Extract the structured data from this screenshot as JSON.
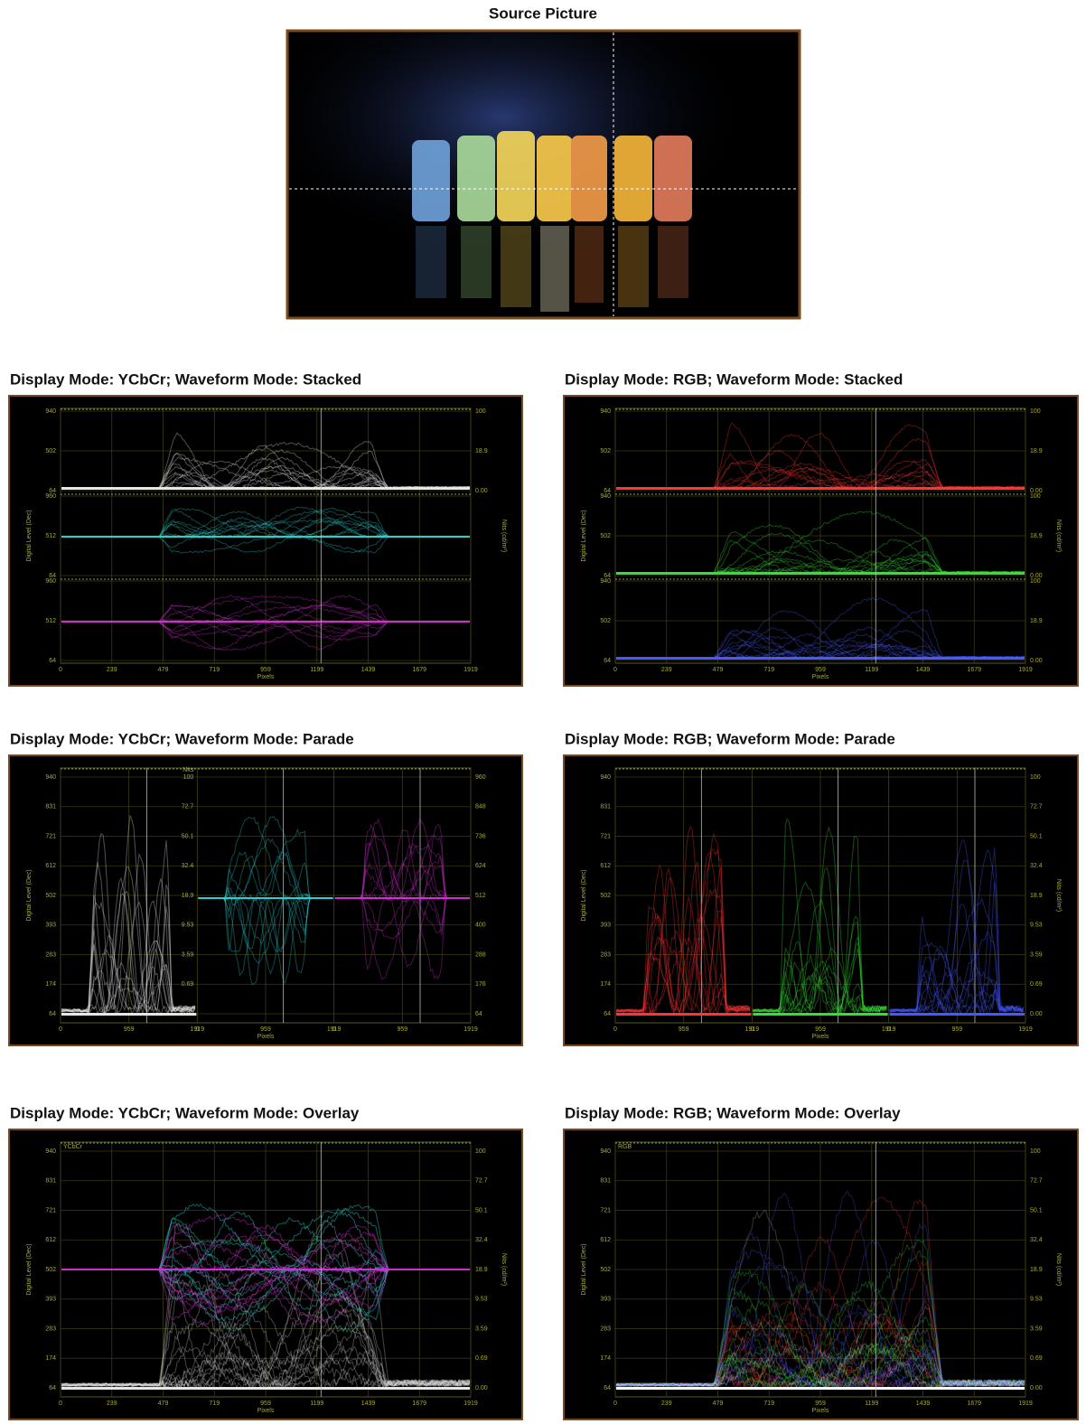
{
  "source_picture": {
    "title": "Source Picture"
  },
  "trace_colors": {
    "ycbcr": [
      "#e6e6e6",
      "#2ccfcf",
      "#d22fd2"
    ],
    "rgb": [
      "#ff3434",
      "#34e034",
      "#4658ff"
    ]
  },
  "panels": [
    {
      "heading": "Display Mode: YCbCr; Waveform Mode: Stacked",
      "colors": "ycbcr",
      "left_axis_label": "Digital Level (Dec)",
      "right_axis_label": "Nits (cd/m²)",
      "x_axis_label": "Pixels",
      "x_ticks": [
        "0",
        "239",
        "479",
        "719",
        "959",
        "1199",
        "1439",
        "1679",
        "1919"
      ],
      "bands": [
        {
          "left_ticks": [
            "940",
            "502",
            "64"
          ],
          "right_ticks": [
            "100",
            "18.9",
            "0.00"
          ]
        },
        {
          "left_ticks": [
            "960",
            "512",
            "64"
          ]
        },
        {
          "left_ticks": [
            "960",
            "512",
            "64"
          ]
        }
      ]
    },
    {
      "heading": "Display Mode: RGB; Waveform Mode: Stacked",
      "colors": "rgb",
      "left_axis_label": "Digital Level (Dec)",
      "right_axis_label": "Nits (cd/m²)",
      "x_axis_label": "Pixels",
      "x_ticks": [
        "0",
        "239",
        "479",
        "719",
        "959",
        "1199",
        "1439",
        "1679",
        "1919"
      ],
      "bands": [
        {
          "left_ticks": [
            "940",
            "502",
            "64"
          ],
          "right_ticks": [
            "100",
            "18.9",
            "0.00"
          ]
        },
        {
          "left_ticks": [
            "940",
            "502",
            "64"
          ],
          "right_ticks": [
            "100",
            "18.9",
            "0.00"
          ]
        },
        {
          "left_ticks": [
            "940",
            "502",
            "64"
          ],
          "right_ticks": [
            "100",
            "18.9",
            "0.00"
          ]
        }
      ]
    },
    {
      "heading": "Display Mode: YCbCr; Waveform Mode: Parade",
      "colors": "ycbcr",
      "left_axis_label": "Digital Level (Dec)",
      "x_axis_label": "Pixels",
      "left_ticks": [
        "940",
        "831",
        "721",
        "612",
        "502",
        "393",
        "283",
        "174",
        "64"
      ],
      "middle_axis_label": "Nits",
      "middle_ticks": [
        "100",
        "72.7",
        "50.1",
        "32.4",
        "18.9",
        "9.53",
        "3.59",
        "0.69",
        "0.00"
      ],
      "right_ticks": [
        "960",
        "848",
        "736",
        "624",
        "512",
        "400",
        "288",
        "176",
        "64"
      ],
      "sections": [
        {
          "x_ticks": [
            "0",
            "959",
            "1919"
          ]
        },
        {
          "x_ticks": [
            "0",
            "959",
            "1919"
          ]
        },
        {
          "x_ticks": [
            "0",
            "959",
            "1919"
          ]
        }
      ]
    },
    {
      "heading": "Display Mode: RGB; Waveform Mode: Parade",
      "colors": "rgb",
      "left_axis_label": "Digital Level (Dec)",
      "right_axis_label": "Nits (cd/m²)",
      "x_axis_label": "Pixels",
      "left_ticks": [
        "940",
        "831",
        "721",
        "612",
        "502",
        "393",
        "283",
        "174",
        "64"
      ],
      "right_ticks": [
        "100",
        "72.7",
        "50.1",
        "32.4",
        "18.9",
        "9.53",
        "3.59",
        "0.69",
        "0.00"
      ],
      "sections": [
        {
          "x_ticks": [
            "0",
            "959",
            "1919"
          ]
        },
        {
          "x_ticks": [
            "0",
            "959",
            "1919"
          ]
        },
        {
          "x_ticks": [
            "0",
            "959",
            "1919"
          ]
        }
      ]
    },
    {
      "heading": "Display Mode: YCbCr; Waveform Mode: Overlay",
      "colors": "ycbcr",
      "overlay_label": "YCbCr",
      "left_axis_label": "Digital Level (Dec)",
      "right_axis_label": "Nits (cd/m²)",
      "x_axis_label": "Pixels",
      "x_ticks": [
        "0",
        "239",
        "479",
        "719",
        "959",
        "1199",
        "1439",
        "1679",
        "1919"
      ],
      "left_ticks": [
        "940",
        "831",
        "721",
        "612",
        "502",
        "393",
        "283",
        "174",
        "64"
      ],
      "right_ticks": [
        "100",
        "72.7",
        "50.1",
        "32.4",
        "18.9",
        "9.53",
        "3.59",
        "0.69",
        "0.00"
      ]
    },
    {
      "heading": "Display Mode: RGB; Waveform Mode: Overlay",
      "colors": "rgb",
      "overlay_label": "RGB",
      "left_axis_label": "Digital Level (Dec)",
      "right_axis_label": "Nits (cd/m²)",
      "x_axis_label": "Pixels",
      "x_ticks": [
        "0",
        "239",
        "479",
        "719",
        "959",
        "1199",
        "1439",
        "1679",
        "1919"
      ],
      "left_ticks": [
        "940",
        "831",
        "721",
        "612",
        "502",
        "393",
        "283",
        "174",
        "64"
      ],
      "right_ticks": [
        "100",
        "72.7",
        "50.1",
        "32.4",
        "18.9",
        "9.53",
        "3.59",
        "0.69",
        "0.00"
      ]
    }
  ]
}
